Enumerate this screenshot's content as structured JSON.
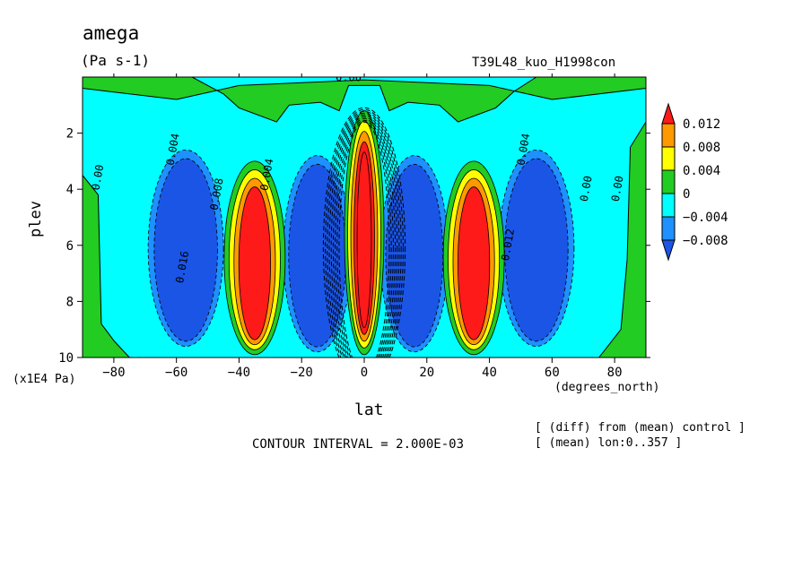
{
  "chart_data": {
    "type": "heatmap",
    "title": "amega",
    "units": "(Pa s-1)",
    "experiment": "T39L48_kuo_H1998con",
    "xlabel": "lat",
    "xunits": "(degrees_north)",
    "ylabel": "plev",
    "yunits": "(x1E4 Pa)",
    "xlim": [
      -90,
      90
    ],
    "ylim": [
      10,
      0
    ],
    "x_ticks": [
      -80,
      -60,
      -40,
      -20,
      0,
      20,
      40,
      60,
      80
    ],
    "y_ticks": [
      2,
      4,
      6,
      8,
      10
    ],
    "colorbar": {
      "labels": [
        "0.012",
        "0.008",
        "0.004",
        "0",
        "−0.004",
        "−0.008"
      ],
      "colors": [
        "#ff1a1a",
        "#ff9900",
        "#ffff00",
        "#22cc22",
        "#00ffff",
        "#1e90ff",
        "#1a55e6"
      ]
    },
    "contour_labels": [
      "0.00",
      "0.004",
      "0.00",
      "0.008",
      "0.012",
      "0.016",
      "0.004",
      "0.004",
      "0.00",
      "0.00"
    ],
    "contour_interval_text": "CONTOUR INTERVAL = 2.000E-03",
    "notes": [
      "[ (diff) from (mean) control ]",
      "[ (mean) lon:0..357 ]"
    ],
    "features": [
      {
        "name": "red-core-equator",
        "lat": 0,
        "plev_range": [
          2.2,
          9.8
        ],
        "value": 0.012
      },
      {
        "name": "red-core-south",
        "lat": -35,
        "plev_range": [
          3.0,
          9.8
        ],
        "value": 0.012
      },
      {
        "name": "red-core-north",
        "lat": 35,
        "plev_range": [
          3.0,
          9.8
        ],
        "value": 0.012
      },
      {
        "name": "blue-core-south-polar",
        "lat": -57,
        "plev_range": [
          2.6,
          9.6
        ],
        "value": -0.008
      },
      {
        "name": "blue-core-south-sub",
        "lat": -15,
        "plev_range": [
          2.8,
          9.8
        ],
        "value": -0.008
      },
      {
        "name": "blue-core-north-sub",
        "lat": 16,
        "plev_range": [
          2.8,
          9.8
        ],
        "value": -0.008
      },
      {
        "name": "blue-core-north-polar",
        "lat": 55,
        "plev_range": [
          2.6,
          9.6
        ],
        "value": -0.008
      }
    ]
  }
}
